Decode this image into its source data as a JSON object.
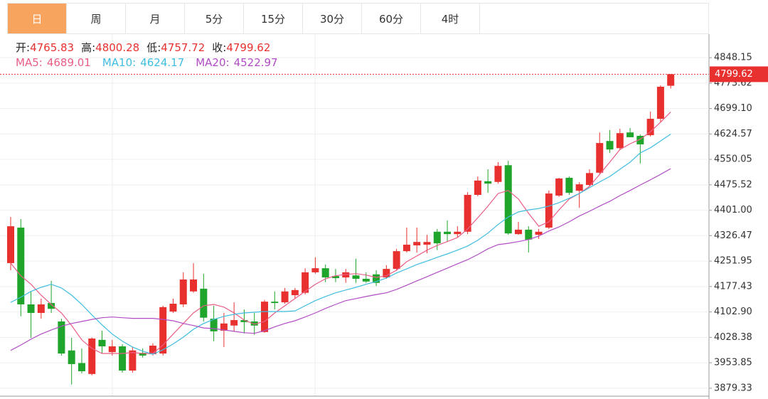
{
  "tabs": {
    "items": [
      "日",
      "周",
      "月",
      "5分",
      "15分",
      "30分",
      "60分",
      "4时"
    ],
    "active": 0
  },
  "chart_data": {
    "type": "candlestick",
    "ohlc_labels": [
      "开:",
      "高:",
      "低:",
      "收:"
    ],
    "open": [
      4246,
      4350,
      4125,
      4100,
      4129,
      4075,
      3990,
      3953,
      3921,
      4021,
      3985,
      4002,
      3931,
      3983,
      3979,
      3981,
      4104,
      4125,
      4163,
      4171,
      4083,
      4048,
      4063,
      4079,
      4075,
      4044,
      4133,
      4131,
      4152,
      4159,
      4219,
      4231,
      4208,
      4204,
      4210,
      4200,
      4213,
      4204,
      4229,
      4281,
      4298,
      4300,
      4338,
      4338,
      4331,
      4338,
      4446,
      4486,
      4484,
      4533,
      4331,
      4344,
      4329,
      4350,
      4444,
      4496,
      4458,
      4475,
      4511,
      4604,
      4583,
      4629,
      4619,
      4621,
      4669,
      4765.83
    ],
    "high": [
      4381,
      4375,
      4162,
      4142,
      4194,
      4083,
      4027,
      3996,
      4028,
      4048,
      4021,
      4008,
      4000,
      3996,
      4011,
      4121,
      4142,
      4219,
      4246,
      4215,
      4121,
      4100,
      4131,
      4110,
      4100,
      4138,
      4163,
      4173,
      4173,
      4231,
      4263,
      4242,
      4229,
      4229,
      4259,
      4219,
      4225,
      4240,
      4288,
      4350,
      4350,
      4329,
      4346,
      4371,
      4354,
      4454,
      4500,
      4521,
      4542,
      4546,
      4367,
      4354,
      4346,
      4459,
      4496,
      4500,
      4483,
      4521,
      4629,
      4636,
      4640,
      4642,
      4623,
      4690,
      4767,
      4800.28
    ],
    "low": [
      4225,
      4090,
      4027,
      4083,
      4100,
      3975,
      3890,
      3923,
      3917,
      3981,
      3975,
      3925,
      3925,
      3969,
      3975,
      3975,
      4100,
      4117,
      4159,
      4075,
      4017,
      4000,
      4046,
      4040,
      4036,
      4042,
      4110,
      4127,
      4142,
      4154,
      4215,
      4190,
      4190,
      4188,
      4188,
      4188,
      4179,
      4200,
      4225,
      4277,
      4277,
      4275,
      4284,
      4309,
      4321,
      4331,
      4442,
      4452,
      4479,
      4329,
      4329,
      4277,
      4317,
      4346,
      4440,
      4446,
      4408,
      4471,
      4507,
      4569,
      4577,
      4621,
      4538,
      4617,
      4659,
      4757.72
    ],
    "close": [
      4354,
      4125,
      4100,
      4125,
      4112,
      3981,
      3950,
      3929,
      4025,
      4002,
      4002,
      3931,
      3990,
      3975,
      4004,
      4117,
      4127,
      4198,
      4198,
      4086,
      4046,
      4069,
      4079,
      4073,
      4063,
      4133,
      4129,
      4163,
      4167,
      4219,
      4231,
      4204,
      4202,
      4219,
      4200,
      4192,
      4188,
      4229,
      4281,
      4300,
      4308,
      4308,
      4304,
      4331,
      4338,
      4446,
      4488,
      4479,
      4531,
      4333,
      4344,
      4315,
      4338,
      4450,
      4494,
      4452,
      4477,
      4510,
      4598,
      4579,
      4627,
      4615,
      4594,
      4669,
      4763,
      4799.62
    ],
    "up_color": "#e8312f",
    "down_color": "#1fa52b",
    "series": [
      {
        "name": "MA5:",
        "color": "#ea5d85",
        "values": [
          4246,
          4209,
          4184,
          4152,
          4125,
          4100,
          4063,
          4021,
          3996,
          3981,
          3981,
          3981,
          3984,
          3981,
          3981,
          4006,
          4038,
          4069,
          4100,
          4121,
          4125,
          4117,
          4100,
          4079,
          4067,
          4075,
          4100,
          4121,
          4142,
          4163,
          4184,
          4200,
          4209,
          4213,
          4215,
          4211,
          4204,
          4209,
          4225,
          4250,
          4267,
          4284,
          4298,
          4309,
          4321,
          4346,
          4379,
          4413,
          4450,
          4459,
          4434,
          4392,
          4354,
          4367,
          4402,
          4434,
          4450,
          4471,
          4506,
          4542,
          4579,
          4596,
          4609,
          4631,
          4659,
          4689.01
        ]
      },
      {
        "name": "MA10:",
        "color": "#3fbde0",
        "values": [
          4131,
          4146,
          4163,
          4175,
          4184,
          4173,
          4152,
          4125,
          4094,
          4065,
          4038,
          4017,
          4000,
          3988,
          3979,
          3992,
          4009,
          4029,
          4052,
          4069,
          4081,
          4090,
          4096,
          4100,
          4102,
          4104,
          4104,
          4104,
          4106,
          4121,
          4136,
          4148,
          4159,
          4167,
          4175,
          4184,
          4192,
          4202,
          4217,
          4229,
          4242,
          4252,
          4263,
          4273,
          4284,
          4296,
          4313,
          4334,
          4359,
          4381,
          4396,
          4402,
          4406,
          4413,
          4423,
          4436,
          4450,
          4467,
          4484,
          4500,
          4521,
          4542,
          4569,
          4584,
          4604,
          4624.17
        ]
      },
      {
        "name": "MA20:",
        "color": "#b14dc4",
        "values": [
          3990,
          4006,
          4023,
          4038,
          4050,
          4061,
          4069,
          4075,
          4081,
          4086,
          4088,
          4086,
          4084,
          4084,
          4084,
          4081,
          4077,
          4069,
          4063,
          4056,
          4054,
          4050,
          4046,
          4042,
          4040,
          4048,
          4059,
          4069,
          4077,
          4088,
          4100,
          4113,
          4125,
          4136,
          4142,
          4148,
          4154,
          4159,
          4169,
          4181,
          4194,
          4206,
          4219,
          4231,
          4244,
          4256,
          4271,
          4288,
          4300,
          4304,
          4309,
          4315,
          4325,
          4340,
          4352,
          4367,
          4384,
          4398,
          4413,
          4427,
          4444,
          4459,
          4475,
          4490,
          4506,
          4522.97
        ]
      }
    ],
    "ylim": [
      3856,
      4913
    ],
    "yticks": [
      3879.33,
      3953.85,
      4028.38,
      {
        "value": 4102.9,
        "label": "4102.90"
      },
      4177.43,
      4251.95,
      4326.47,
      {
        "value": 4401,
        "label": "4401.00"
      },
      4475.52,
      4550.05,
      4624.57,
      {
        "value": 4699.1,
        "label": "4699.10"
      },
      4773.62,
      4848.15
    ],
    "grid": true,
    "last_price_line": true
  }
}
